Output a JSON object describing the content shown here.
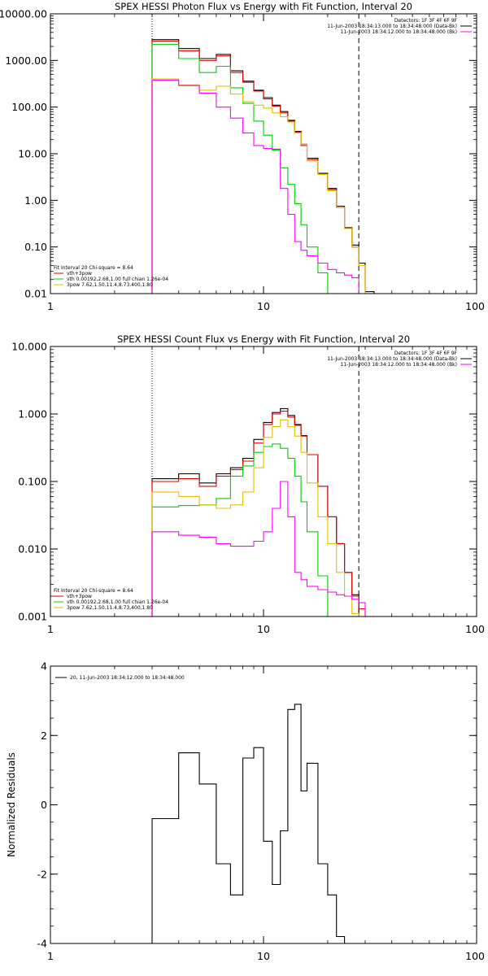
{
  "chart_data": [
    {
      "type": "line",
      "title": "SPEX HESSI Photon Flux vs Energy with Fit Function, Interval 20",
      "x_scale": "log",
      "y_scale": "log",
      "xlim": [
        1,
        100
      ],
      "ylim": [
        0.01,
        10000
      ],
      "x_ticks": [
        1,
        10,
        100
      ],
      "x_tick_labels": [
        "1",
        "10",
        "100"
      ],
      "y_ticks": [
        0.01,
        0.1,
        1,
        10,
        100,
        1000,
        10000
      ],
      "y_tick_labels": [
        "0.01",
        "0.10",
        "1.00",
        "10.00",
        "100.00",
        "1000.00",
        "10000.00"
      ],
      "vlines": [
        {
          "x": 3,
          "style": "dotted"
        },
        {
          "x": 28,
          "style": "dashed"
        }
      ],
      "legend_top": [
        "Detectors: 1F 3F 4F 6F 9F",
        "11-Jun-2003 18:34:13.000 to 18:34:48.000 (Data-Bk)",
        "11-Jun-2003 18:34:12.000 to 18:34:48.000 (Bk)"
      ],
      "legend_bottom": [
        "Fit Interval 20    Chi-square = 8.64",
        "vth+3pow",
        "vth 0.00192,2.68,1.00  full chian 1.26e-04",
        "3pow 7.62,1.50,11.4,8.73,400,1.80"
      ],
      "x_edges": [
        3,
        4,
        5,
        6,
        7,
        8,
        9,
        10,
        11,
        12,
        13,
        14,
        15,
        16,
        18,
        20,
        22,
        24,
        26,
        28,
        30,
        33
      ],
      "series": [
        {
          "name": "Data-Bk",
          "color": "#000000",
          "values": [
            2800,
            1800,
            1100,
            1350,
            600,
            360,
            230,
            160,
            110,
            80,
            52,
            30,
            16,
            8,
            3.8,
            1.8,
            0.75,
            0.26,
            0.11,
            0.045,
            0.011
          ]
        },
        {
          "name": "vth+3pow",
          "color": "#e00000",
          "values": [
            2600,
            1600,
            1000,
            1250,
            550,
            340,
            220,
            150,
            105,
            75,
            50,
            29,
            15,
            7.5,
            3.6,
            1.7,
            0.7,
            0.25,
            0.1,
            0.04,
            0.01
          ]
        },
        {
          "name": "vth",
          "color": "#00d000",
          "values": [
            2200,
            1100,
            550,
            750,
            260,
            120,
            50,
            25,
            12,
            5,
            2.2,
            0.85,
            0.3,
            0.1,
            0.028,
            0.01
          ]
        },
        {
          "name": "3pow",
          "color": "#e0c000",
          "values": [
            400,
            300,
            230,
            280,
            190,
            130,
            110,
            95,
            75,
            62,
            48,
            28,
            16,
            7,
            3.6,
            1.6,
            0.7,
            0.25,
            0.1,
            0.04
          ]
        },
        {
          "name": "Bk",
          "color": "#ff00ff",
          "values": [
            380,
            290,
            200,
            100,
            58,
            28,
            15,
            13,
            12.5,
            1.8,
            0.5,
            0.13,
            0.085,
            0.065,
            0.045,
            0.033,
            0.028,
            0.025,
            0.022
          ]
        }
      ]
    },
    {
      "type": "line",
      "title": "SPEX HESSI Count Flux vs Energy with Fit Function, Interval 20",
      "x_scale": "log",
      "y_scale": "log",
      "xlim": [
        1,
        100
      ],
      "ylim": [
        0.001,
        10
      ],
      "x_ticks": [
        1,
        10,
        100
      ],
      "x_tick_labels": [
        "1",
        "10",
        "100"
      ],
      "y_ticks": [
        0.001,
        0.01,
        0.1,
        1,
        10
      ],
      "y_tick_labels": [
        "0.001",
        "0.010",
        "0.100",
        "1.000",
        "10.000"
      ],
      "vlines": [
        {
          "x": 3,
          "style": "dotted"
        },
        {
          "x": 28,
          "style": "dashed"
        }
      ],
      "legend_top": [
        "Detectors: 1F 3F 4F 6F 9F",
        "11-Jun-2003 18:34:13.000 to 18:34:48.000 (Data-Bk)",
        "11-Jun-2003 18:34:12.000 to 18:34:48.000 (Bk)"
      ],
      "legend_bottom": [
        "Fit Interval 20    Chi-square = 8.64",
        "vth+3pow",
        "vth 0.00192,2.68,1.00  full chian 1.26e-04",
        "3pow 7.62,1.50,11.4,8.73,400,1.80"
      ],
      "x_edges": [
        3,
        4,
        5,
        6,
        7,
        8,
        9,
        10,
        11,
        12,
        13,
        14,
        15,
        16,
        18,
        20,
        22,
        24,
        26,
        28,
        30,
        33
      ],
      "series": [
        {
          "name": "Data-Bk",
          "color": "#000000",
          "values": [
            0.11,
            0.13,
            0.095,
            0.13,
            0.16,
            0.22,
            0.42,
            0.75,
            1.05,
            1.2,
            0.95,
            0.7,
            0.48,
            0.25,
            0.085,
            0.03,
            0.012,
            0.0045,
            0.0021
          ]
        },
        {
          "name": "vth+3pow",
          "color": "#e00000",
          "values": [
            0.1,
            0.11,
            0.085,
            0.12,
            0.15,
            0.2,
            0.37,
            0.7,
            1.0,
            1.1,
            0.9,
            0.68,
            0.47,
            0.25,
            0.085,
            0.03,
            0.012,
            0.0045,
            0.002,
            0.0013
          ]
        },
        {
          "name": "vth",
          "color": "#00d000",
          "values": [
            0.042,
            0.044,
            0.045,
            0.056,
            0.12,
            0.17,
            0.27,
            0.33,
            0.36,
            0.31,
            0.22,
            0.12,
            0.05,
            0.018,
            0.004
          ]
        },
        {
          "name": "3pow",
          "color": "#e0c000",
          "values": [
            0.07,
            0.06,
            0.045,
            0.04,
            0.045,
            0.07,
            0.16,
            0.45,
            0.65,
            0.82,
            0.65,
            0.47,
            0.27,
            0.095,
            0.03,
            0.012,
            0.0045,
            0.002,
            0.0011
          ]
        },
        {
          "name": "Bk",
          "color": "#ff00ff",
          "values": [
            0.018,
            0.016,
            0.015,
            0.012,
            0.011,
            0.011,
            0.013,
            0.018,
            0.04,
            0.1,
            0.03,
            0.0045,
            0.0035,
            0.0028,
            0.0025,
            0.0023,
            0.0021,
            0.002,
            0.0018,
            0.0016
          ]
        }
      ]
    },
    {
      "type": "line",
      "title": "",
      "ylabel": "Normalized Residuals",
      "x_scale": "log",
      "y_scale": "linear",
      "xlim": [
        1,
        100
      ],
      "ylim": [
        -4,
        4
      ],
      "x_ticks": [
        1,
        10,
        100
      ],
      "x_tick_labels": [
        "1",
        "10",
        "100"
      ],
      "y_ticks": [
        -4,
        -2,
        0,
        2,
        4
      ],
      "y_tick_labels": [
        "-4",
        "-2",
        "0",
        "2",
        "4"
      ],
      "legend_top": [
        "20, 11-Jun-2003 18:34:12.000 to 18:34:48.000"
      ],
      "x_edges": [
        3,
        4,
        5,
        6,
        7,
        8,
        9,
        10,
        11,
        12,
        13,
        14,
        15,
        16,
        18,
        20,
        22,
        24,
        26,
        28
      ],
      "bottom_value": -4,
      "series": [
        {
          "name": "20, 11-Jun-2003 18:34:12.000 to 18:34:48.000",
          "color": "#000000",
          "values": [
            -0.4,
            1.5,
            0.6,
            -1.7,
            -2.6,
            1.35,
            1.65,
            -1.05,
            -2.3,
            -0.75,
            2.75,
            2.9,
            0.4,
            1.2,
            -1.7,
            -2.6,
            -3.8,
            -4.0,
            -4.0
          ]
        }
      ]
    }
  ]
}
